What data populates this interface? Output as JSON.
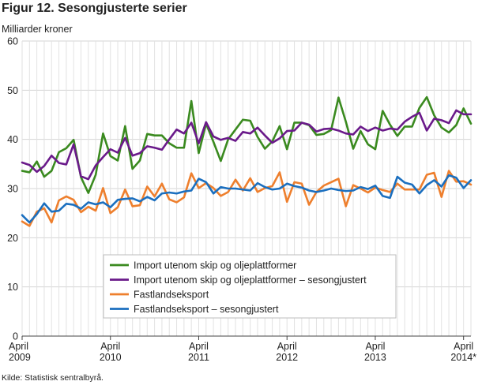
{
  "title": "Figur 12. Sesongjusterte serier",
  "source": "Kilde: Statistisk sentralbyrå.",
  "chart_data": {
    "type": "line",
    "title": "Figur 12. Sesongjusterte serier",
    "ylabel": "Milliarder kroner",
    "xlabel": "",
    "ylim": [
      0,
      60
    ],
    "yticks": [
      0,
      10,
      20,
      30,
      40,
      50,
      60
    ],
    "grid": true,
    "legend_position": "center-bottom",
    "x_tick_labels": [
      {
        "index": 0,
        "line1": "April",
        "line2": "2009"
      },
      {
        "index": 12,
        "line1": "April",
        "line2": "2010"
      },
      {
        "index": 24,
        "line1": "April",
        "line2": "2011"
      },
      {
        "index": 36,
        "line1": "April",
        "line2": "2012"
      },
      {
        "index": 48,
        "line1": "April",
        "line2": "2013"
      },
      {
        "index": 60,
        "line1": "April",
        "line2": "2014*"
      }
    ],
    "series": [
      {
        "name": "Import utenom skip og oljeplattformer",
        "color": "#3a8a1f",
        "values": [
          33.6,
          33.3,
          35.5,
          32.4,
          33.6,
          37.4,
          38.2,
          39.9,
          32.3,
          29.1,
          32.8,
          41.2,
          36.6,
          35.7,
          42.7,
          34.0,
          35.7,
          41.1,
          40.8,
          40.8,
          39.2,
          38.3,
          38.3,
          47.8,
          37.2,
          43.2,
          39.5,
          35.6,
          40.0,
          42.0,
          44.0,
          43.8,
          40.5,
          38.1,
          39.6,
          42.7,
          38.0,
          43.4,
          43.4,
          42.9,
          40.9,
          41.1,
          41.9,
          48.5,
          43.6,
          38.1,
          41.7,
          39.0,
          38.0,
          45.8,
          43.0,
          40.7,
          42.6,
          42.6,
          46.4,
          48.6,
          44.9,
          42.4,
          41.4,
          42.9,
          46.3,
          43.2
        ]
      },
      {
        "name": "Import utenom skip og oljeplattformer – sesongjustert",
        "color": "#6a1a8a",
        "values": [
          35.3,
          34.8,
          33.4,
          34.6,
          36.7,
          35.2,
          34.9,
          39.0,
          32.5,
          31.9,
          34.7,
          36.4,
          38.0,
          37.3,
          40.3,
          36.7,
          37.2,
          38.6,
          38.3,
          37.9,
          40.0,
          42.0,
          41.2,
          43.4,
          39.2,
          43.5,
          40.6,
          39.9,
          40.3,
          39.7,
          41.5,
          41.2,
          42.4,
          40.8,
          39.3,
          40.2,
          41.7,
          41.8,
          43.4,
          43.0,
          41.6,
          42.1,
          42.2,
          41.8,
          41.2,
          41.0,
          42.6,
          41.7,
          42.4,
          41.8,
          42.2,
          42.0,
          43.6,
          44.6,
          45.4,
          41.8,
          44.2,
          43.9,
          43.3,
          45.9,
          45.1,
          45.1
        ]
      },
      {
        "name": "Fastlandseksport",
        "color": "#ee7f2d",
        "values": [
          23.3,
          22.4,
          25.3,
          26.0,
          23.1,
          27.6,
          28.4,
          27.7,
          25.2,
          26.3,
          25.5,
          30.1,
          25.0,
          26.2,
          29.8,
          26.4,
          26.6,
          30.4,
          28.4,
          31.0,
          27.8,
          27.2,
          28.2,
          33.1,
          30.1,
          31.1,
          30.1,
          28.5,
          29.3,
          31.8,
          29.6,
          32.1,
          29.3,
          30.1,
          30.5,
          33.3,
          27.3,
          31.3,
          31.0,
          26.7,
          29.3,
          30.6,
          31.3,
          32.0,
          26.4,
          30.7,
          30.0,
          29.2,
          30.2,
          29.7,
          29.3,
          31.0,
          29.8,
          29.8,
          29.8,
          32.8,
          33.2,
          28.3,
          33.6,
          31.4,
          31.5,
          30.8
        ]
      },
      {
        "name": "Fastlandseksport – sesongjustert",
        "color": "#1b6fbf",
        "values": [
          24.6,
          23.1,
          24.8,
          27.0,
          25.3,
          25.5,
          26.9,
          26.7,
          25.9,
          27.2,
          26.8,
          27.2,
          26.2,
          27.7,
          27.9,
          28.0,
          27.4,
          28.3,
          27.6,
          29.0,
          29.2,
          29.0,
          29.4,
          29.6,
          32.0,
          31.3,
          29.0,
          30.3,
          30.0,
          30.0,
          29.8,
          29.6,
          31.1,
          30.3,
          29.8,
          30.0,
          31.0,
          30.5,
          30.2,
          29.6,
          29.3,
          29.6,
          30.0,
          29.7,
          29.5,
          29.6,
          30.3,
          29.9,
          30.6,
          28.5,
          28.1,
          32.4,
          31.2,
          30.8,
          29.0,
          30.7,
          31.7,
          30.4,
          32.7,
          32.2,
          30.1,
          31.7
        ]
      }
    ]
  }
}
